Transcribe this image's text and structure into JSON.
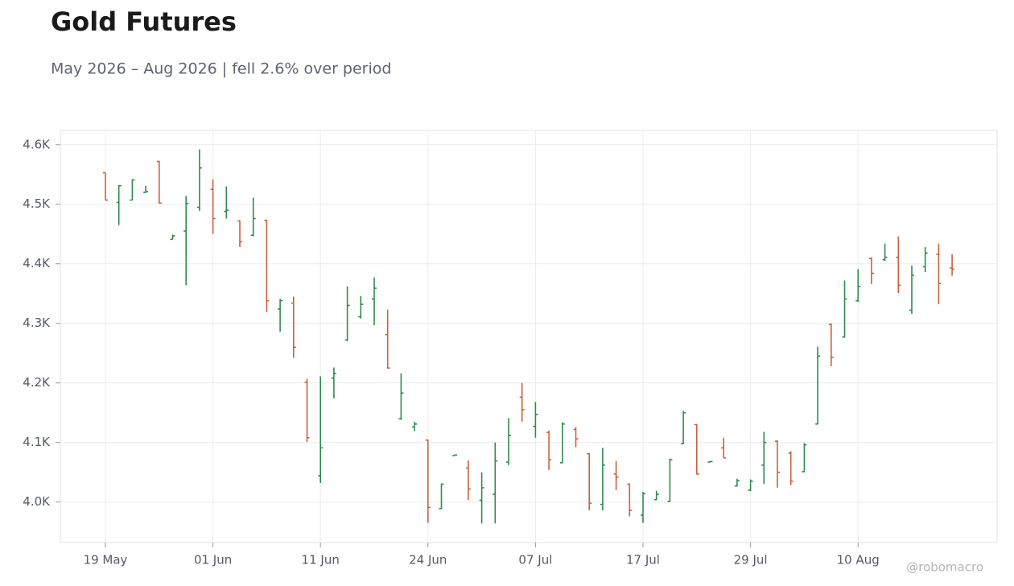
{
  "chart_data": {
    "type": "ohlc",
    "title": "Gold Futures",
    "subtitle": "May 2026 – Aug 2026 | fell 2.6% over period",
    "watermark": "@robomacro",
    "categories": [
      "19 May",
      null,
      null,
      null,
      null,
      null,
      null,
      null,
      "01 Jun",
      null,
      null,
      null,
      null,
      null,
      null,
      null,
      "11 Jun",
      null,
      null,
      null,
      null,
      null,
      null,
      null,
      "24 Jun",
      null,
      null,
      null,
      null,
      null,
      null,
      null,
      "07 Jul",
      null,
      null,
      null,
      null,
      null,
      null,
      null,
      "17 Jul",
      null,
      null,
      null,
      null,
      null,
      null,
      null,
      "29 Jul",
      null,
      null,
      null,
      null,
      null,
      null,
      null,
      "10 Aug",
      null,
      null,
      null,
      null,
      null,
      null,
      null
    ],
    "open": [
      4553,
      4503,
      4507,
      4520,
      4572,
      4441,
      4455,
      4495,
      4525,
      4488,
      4472,
      4448,
      4473,
      4324,
      4334,
      4201,
      4044,
      4208,
      4272,
      4311,
      4341,
      4281,
      4140,
      4126,
      4104,
      3989,
      4078,
      4057,
      4003,
      4013,
      4067,
      4176,
      4127,
      4117,
      4066,
      4122,
      4081,
      3996,
      4047,
      4030,
      3978,
      4004,
      4001,
      4098,
      4130,
      4067,
      4091,
      4027,
      4020,
      4062,
      4102,
      4082,
      4051,
      4131,
      4298,
      4277,
      4338,
      4409,
      4407,
      4411,
      4322,
      4395,
      4416,
      4393
    ],
    "high": [
      4553,
      4532,
      4542,
      4531,
      4573,
      4449,
      4514,
      4592,
      4542,
      4530,
      4473,
      4511,
      4474,
      4341,
      4345,
      4207,
      4211,
      4226,
      4362,
      4346,
      4377,
      4323,
      4216,
      4135,
      4105,
      4031,
      4080,
      4070,
      4050,
      4100,
      4141,
      4200,
      4168,
      4120,
      4134,
      4126,
      4082,
      4091,
      4069,
      4031,
      4017,
      4019,
      4073,
      4153,
      4131,
      4069,
      4108,
      4039,
      4038,
      4118,
      4104,
      4085,
      4099,
      4261,
      4300,
      4372,
      4391,
      4411,
      4434,
      4446,
      4397,
      4428,
      4434,
      4416
    ],
    "low": [
      4507,
      4465,
      4507,
      4519,
      4501,
      4441,
      4364,
      4489,
      4450,
      4476,
      4428,
      4446,
      4319,
      4286,
      4242,
      4101,
      4032,
      4174,
      4270,
      4308,
      4297,
      4224,
      4138,
      4119,
      3965,
      3988,
      4078,
      4003,
      3964,
      3964,
      4062,
      4135,
      4108,
      4054,
      4065,
      4092,
      3986,
      3986,
      4020,
      3976,
      3965,
      4003,
      4000,
      4097,
      4046,
      4067,
      4074,
      4026,
      4018,
      4030,
      4024,
      4028,
      4050,
      4130,
      4228,
      4276,
      4336,
      4366,
      4405,
      4351,
      4316,
      4386,
      4332,
      4380
    ],
    "close": [
      4507,
      4531,
      4541,
      4521,
      4502,
      4447,
      4501,
      4561,
      4476,
      4490,
      4437,
      4476,
      4338,
      4338,
      4260,
      4108,
      4091,
      4216,
      4330,
      4332,
      4359,
      4225,
      4183,
      4131,
      3991,
      4030,
      4079,
      4022,
      4024,
      4069,
      4112,
      4155,
      4147,
      4071,
      4131,
      4106,
      3998,
      4062,
      4042,
      3986,
      4014,
      4013,
      4071,
      4150,
      4047,
      4068,
      4074,
      4036,
      4035,
      4100,
      4050,
      4035,
      4096,
      4245,
      4243,
      4341,
      4362,
      4384,
      4411,
      4364,
      4381,
      4418,
      4367,
      4391
    ],
    "up_color": "#2f8a4f",
    "down_color": "#c8623e",
    "ylim": [
      3932,
      4624
    ],
    "yticks": [
      {
        "value": 4000,
        "label": "4.0K"
      },
      {
        "value": 4100,
        "label": "4.1K"
      },
      {
        "value": 4200,
        "label": "4.2K"
      },
      {
        "value": 4300,
        "label": "4.3K"
      },
      {
        "value": 4400,
        "label": "4.4K"
      },
      {
        "value": 4500,
        "label": "4.5K"
      },
      {
        "value": 4600,
        "label": "4.6K"
      }
    ],
    "grid": true
  }
}
